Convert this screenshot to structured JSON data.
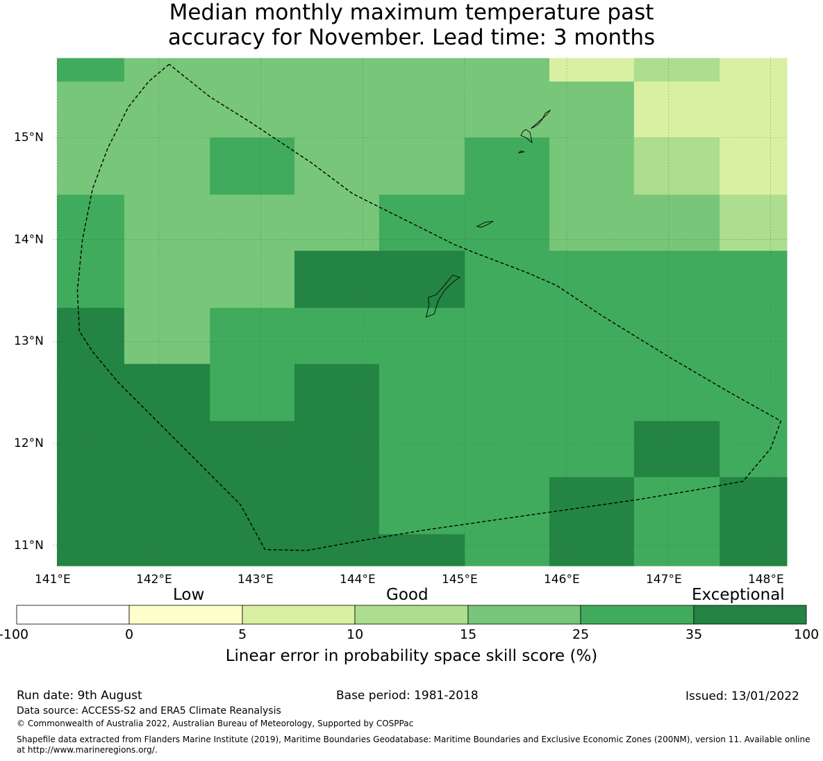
{
  "title_lines": [
    "Median monthly maximum temperature past",
    "accuracy for November. Lead time: 3 months"
  ],
  "map": {
    "lon_labels": [
      "141°E",
      "142°E",
      "143°E",
      "144°E",
      "145°E",
      "146°E",
      "147°E",
      "148°E"
    ],
    "lat_labels": [
      "15°N",
      "14°N",
      "13°N",
      "12°N",
      "11°N"
    ],
    "grid_skill_rows": [
      [
        25,
        15,
        15,
        20,
        15,
        15,
        5,
        10,
        5
      ],
      [
        20,
        20,
        20,
        20,
        20,
        15,
        15,
        5,
        5
      ],
      [
        20,
        20,
        30,
        20,
        20,
        30,
        20,
        10,
        5
      ],
      [
        30,
        20,
        20,
        20,
        30,
        30,
        20,
        20,
        10
      ],
      [
        30,
        20,
        20,
        40,
        40,
        30,
        30,
        30,
        30
      ],
      [
        40,
        20,
        30,
        30,
        30,
        30,
        30,
        30,
        30
      ],
      [
        40,
        40,
        30,
        40,
        30,
        30,
        30,
        30,
        30
      ],
      [
        40,
        40,
        40,
        40,
        30,
        30,
        30,
        40,
        30
      ],
      [
        40,
        40,
        40,
        40,
        30,
        30,
        40,
        30,
        40
      ],
      [
        40,
        40,
        40,
        40,
        40,
        30,
        40,
        30,
        40
      ]
    ],
    "cell_lon_edges": [
      141.0,
      141.66,
      142.5,
      143.33,
      144.16,
      145.0,
      145.83,
      146.66,
      147.5,
      148.2
    ],
    "cell_lat_edges": [
      15.78,
      15.55,
      15.0,
      14.44,
      13.89,
      13.33,
      12.78,
      12.22,
      11.67,
      11.11,
      10.8
    ],
    "eez_boundary": [
      [
        142.1,
        15.72
      ],
      [
        141.9,
        15.55
      ],
      [
        141.7,
        15.3
      ],
      [
        141.5,
        14.9
      ],
      [
        141.35,
        14.5
      ],
      [
        141.25,
        14.0
      ],
      [
        141.2,
        13.5
      ],
      [
        141.22,
        13.1
      ],
      [
        141.35,
        12.9
      ],
      [
        141.6,
        12.6
      ],
      [
        142.0,
        12.2
      ],
      [
        142.4,
        11.8
      ],
      [
        142.8,
        11.4
      ],
      [
        143.04,
        10.96
      ],
      [
        143.45,
        10.95
      ],
      [
        144.0,
        11.05
      ],
      [
        144.6,
        11.15
      ],
      [
        145.3,
        11.25
      ],
      [
        146.0,
        11.35
      ],
      [
        146.7,
        11.45
      ],
      [
        147.3,
        11.55
      ],
      [
        147.73,
        11.63
      ],
      [
        148.0,
        11.95
      ],
      [
        148.1,
        12.22
      ],
      [
        147.6,
        12.5
      ],
      [
        147.0,
        12.85
      ],
      [
        146.35,
        13.25
      ],
      [
        145.9,
        13.55
      ],
      [
        145.6,
        13.68
      ],
      [
        145.1,
        13.87
      ],
      [
        144.9,
        13.95
      ],
      [
        144.6,
        14.1
      ],
      [
        144.1,
        14.35
      ],
      [
        143.9,
        14.45
      ],
      [
        143.5,
        14.75
      ],
      [
        142.9,
        15.15
      ],
      [
        142.5,
        15.4
      ],
      [
        142.1,
        15.72
      ]
    ],
    "islands": [
      [
        [
          145.65,
          15.09
        ],
        [
          145.73,
          15.16
        ],
        [
          145.8,
          15.22
        ],
        [
          145.84,
          15.27
        ],
        [
          145.79,
          15.24
        ],
        [
          145.76,
          15.18
        ],
        [
          145.72,
          15.13
        ],
        [
          145.67,
          15.1
        ]
      ],
      [
        [
          145.55,
          15.02
        ],
        [
          145.6,
          15.0
        ],
        [
          145.66,
          14.95
        ],
        [
          145.64,
          15.05
        ],
        [
          145.6,
          15.08
        ],
        [
          145.57,
          15.06
        ]
      ],
      [
        [
          145.53,
          14.85
        ],
        [
          145.58,
          14.86
        ],
        [
          145.55,
          14.87
        ]
      ],
      [
        [
          145.12,
          14.13
        ],
        [
          145.2,
          14.17
        ],
        [
          145.28,
          14.18
        ],
        [
          145.23,
          14.15
        ],
        [
          145.16,
          14.12
        ]
      ],
      [
        [
          144.62,
          13.24
        ],
        [
          144.7,
          13.27
        ],
        [
          144.74,
          13.4
        ],
        [
          144.8,
          13.5
        ],
        [
          144.88,
          13.58
        ],
        [
          144.95,
          13.63
        ],
        [
          144.88,
          13.65
        ],
        [
          144.8,
          13.55
        ],
        [
          144.72,
          13.46
        ],
        [
          144.64,
          13.43
        ],
        [
          144.65,
          13.36
        ],
        [
          144.63,
          13.28
        ]
      ]
    ]
  },
  "legend": {
    "categories": [
      "Low",
      "Good",
      "Exceptional"
    ],
    "ticks": [
      "-100",
      "0",
      "5",
      "10",
      "15",
      "25",
      "35",
      "100"
    ],
    "colors": [
      "#ffffff",
      "#ffffcc",
      "#d9f0a3",
      "#addd8e",
      "#78c679",
      "#41ab5d",
      "#238443"
    ],
    "label": "Linear error in probability space skill score (%)"
  },
  "footer": {
    "run_date": "Run date: 9th August",
    "base_period": "Base period: 1981-2018",
    "issued": "Issued: 13/01/2022",
    "data_source": "Data source: ACCESS-S2 and ERA5 Climate Reanalysis",
    "copyright": "© Commonwealth of Australia 2022, Australian Bureau of Meteorology, Supported by COSPPac",
    "shapefile": "Shapefile data extracted from Flanders Marine Institute (2019), Maritime Boundaries Geodatabase: Maritime Boundaries and Exclusive Economic Zones (200NM), version 11. Available online at http://www.marineregions.org/."
  }
}
